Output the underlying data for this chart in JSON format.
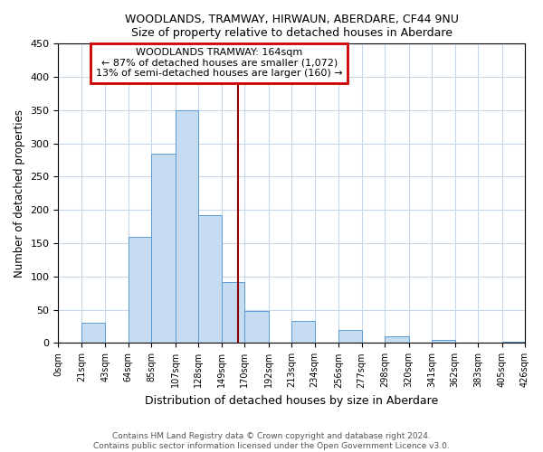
{
  "title": "WOODLANDS, TRAMWAY, HIRWAUN, ABERDARE, CF44 9NU",
  "subtitle": "Size of property relative to detached houses in Aberdare",
  "xlabel": "Distribution of detached houses by size in Aberdare",
  "ylabel": "Number of detached properties",
  "bar_color": "#c6dcf0",
  "bar_edge_color": "#5b9bd5",
  "vline_x": 164,
  "vline_color": "#8b0000",
  "annotation_title": "WOODLANDS TRAMWAY: 164sqm",
  "annotation_line1": "← 87% of detached houses are smaller (1,072)",
  "annotation_line2": "13% of semi-detached houses are larger (160) →",
  "bin_edges": [
    0,
    21,
    43,
    64,
    85,
    107,
    128,
    149,
    170,
    192,
    213,
    234,
    256,
    277,
    298,
    320,
    341,
    362,
    383,
    405,
    426
  ],
  "bin_labels": [
    "0sqm",
    "21sqm",
    "43sqm",
    "64sqm",
    "85sqm",
    "107sqm",
    "128sqm",
    "149sqm",
    "170sqm",
    "192sqm",
    "213sqm",
    "234sqm",
    "256sqm",
    "277sqm",
    "298sqm",
    "320sqm",
    "341sqm",
    "362sqm",
    "383sqm",
    "405sqm",
    "426sqm"
  ],
  "bar_heights": [
    0,
    30,
    0,
    160,
    285,
    350,
    192,
    91,
    48,
    0,
    33,
    0,
    19,
    0,
    10,
    0,
    5,
    0,
    0,
    2
  ],
  "ylim": [
    0,
    450
  ],
  "yticks": [
    0,
    50,
    100,
    150,
    200,
    250,
    300,
    350,
    400,
    450
  ],
  "footnote1": "Contains HM Land Registry data © Crown copyright and database right 2024.",
  "footnote2": "Contains public sector information licensed under the Open Government Licence v3.0.",
  "background_color": "#ffffff",
  "grid_color": "#c8d8e8"
}
